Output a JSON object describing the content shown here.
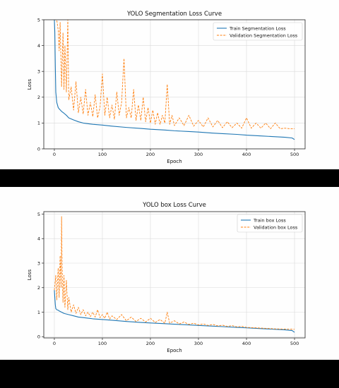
{
  "colors": {
    "train": "#1f77b4",
    "validation": "#ff7f0e",
    "grid": "#d9d9d9",
    "panel_bg": "#fefefe",
    "page_bg": "#000000"
  },
  "chart_data": [
    {
      "type": "line",
      "title": "YOLO Segmentation Loss Curve",
      "xlabel": "Epoch",
      "ylabel": "Loss",
      "xlim": [
        -22,
        522
      ],
      "ylim": [
        0,
        5
      ],
      "xticks": [
        "0",
        "100",
        "200",
        "300",
        "400",
        "500"
      ],
      "yticks": [
        "0",
        "1",
        "2",
        "3",
        "4",
        "5"
      ],
      "grid": true,
      "legend": "top-right",
      "series": [
        {
          "name": "Train Segmentation Loss",
          "style": "solid",
          "x": [
            0,
            1,
            2,
            3,
            5,
            8,
            10,
            15,
            20,
            25,
            30,
            40,
            50,
            60,
            80,
            100,
            120,
            150,
            180,
            200,
            230,
            250,
            280,
            300,
            330,
            350,
            380,
            400,
            430,
            450,
            480,
            495,
            500
          ],
          "y": [
            5,
            4.5,
            3.2,
            2.2,
            1.8,
            1.6,
            1.55,
            1.45,
            1.38,
            1.3,
            1.2,
            1.12,
            1.05,
            1.0,
            0.95,
            0.92,
            0.88,
            0.83,
            0.79,
            0.76,
            0.73,
            0.7,
            0.67,
            0.65,
            0.61,
            0.59,
            0.56,
            0.53,
            0.5,
            0.48,
            0.45,
            0.42,
            0.36
          ]
        },
        {
          "name": "Validation Segmentation Loss",
          "style": "dashed",
          "x": [
            0,
            5,
            8,
            10,
            12,
            15,
            18,
            20,
            22,
            25,
            28,
            30,
            35,
            40,
            45,
            50,
            55,
            60,
            65,
            70,
            75,
            80,
            85,
            90,
            95,
            100,
            105,
            110,
            115,
            120,
            125,
            130,
            135,
            140,
            145,
            150,
            155,
            160,
            165,
            170,
            175,
            180,
            185,
            190,
            195,
            200,
            205,
            210,
            215,
            220,
            225,
            230,
            235,
            240,
            245,
            250,
            260,
            270,
            280,
            290,
            300,
            310,
            320,
            330,
            340,
            350,
            360,
            370,
            380,
            390,
            400,
            410,
            420,
            430,
            440,
            450,
            460,
            470,
            480,
            490,
            500
          ],
          "y": [
            5,
            5,
            4.6,
            3.8,
            4.9,
            2.4,
            4.5,
            2.3,
            4.0,
            2.2,
            5.0,
            1.9,
            2.4,
            1.5,
            2.6,
            1.4,
            2.0,
            1.35,
            2.3,
            1.3,
            1.8,
            1.25,
            2.1,
            1.2,
            1.6,
            2.9,
            1.3,
            2.0,
            1.2,
            1.7,
            1.15,
            2.2,
            1.3,
            1.8,
            3.5,
            1.2,
            1.6,
            1.2,
            2.3,
            1.1,
            1.7,
            1.1,
            2.0,
            1.05,
            1.6,
            1.0,
            1.5,
            0.95,
            1.4,
            0.95,
            1.3,
            1.0,
            2.5,
            0.95,
            1.3,
            0.9,
            1.2,
            0.9,
            1.3,
            0.88,
            1.1,
            0.85,
            1.2,
            0.85,
            1.1,
            0.82,
            1.05,
            0.82,
            1.0,
            0.8,
            1.2,
            0.8,
            1.0,
            0.8,
            1.0,
            0.78,
            1.0,
            0.78,
            0.8,
            0.78,
            0.78
          ]
        }
      ]
    },
    {
      "type": "line",
      "title": "YOLO box Loss Curve",
      "xlabel": "Epoch",
      "ylabel": "Loss",
      "xlim": [
        -22,
        522
      ],
      "ylim": [
        -0.05,
        5.1
      ],
      "xticks": [
        "0",
        "100",
        "200",
        "300",
        "400",
        "500"
      ],
      "yticks": [
        "0",
        "1",
        "2",
        "3",
        "4",
        "5"
      ],
      "grid": true,
      "legend": "top-right",
      "series": [
        {
          "name": "Train box Loss",
          "style": "solid",
          "x": [
            0,
            1,
            2,
            3,
            5,
            8,
            10,
            15,
            20,
            30,
            40,
            50,
            60,
            80,
            100,
            120,
            150,
            180,
            200,
            230,
            250,
            280,
            300,
            330,
            350,
            380,
            400,
            430,
            450,
            480,
            495,
            500
          ],
          "y": [
            1.9,
            1.6,
            1.3,
            1.15,
            1.1,
            1.08,
            1.05,
            1.0,
            0.95,
            0.9,
            0.85,
            0.8,
            0.78,
            0.73,
            0.7,
            0.67,
            0.62,
            0.58,
            0.56,
            0.53,
            0.51,
            0.48,
            0.46,
            0.43,
            0.41,
            0.38,
            0.36,
            0.33,
            0.31,
            0.28,
            0.25,
            0.18
          ]
        },
        {
          "name": "Validation box Loss",
          "style": "dashed",
          "x": [
            0,
            3,
            5,
            8,
            10,
            12,
            14,
            15,
            16,
            18,
            20,
            22,
            25,
            28,
            30,
            35,
            40,
            45,
            50,
            55,
            60,
            65,
            70,
            75,
            80,
            85,
            90,
            95,
            100,
            105,
            110,
            115,
            120,
            130,
            140,
            150,
            160,
            170,
            180,
            190,
            200,
            210,
            220,
            230,
            235,
            240,
            250,
            260,
            270,
            280,
            290,
            300,
            310,
            320,
            330,
            340,
            350,
            360,
            370,
            380,
            390,
            400,
            420,
            440,
            460,
            480,
            500
          ],
          "y": [
            1.9,
            2.5,
            1.5,
            2.8,
            1.6,
            3.3,
            2.0,
            4.9,
            3.0,
            1.4,
            2.5,
            1.2,
            2.3,
            1.1,
            1.6,
            1.0,
            1.3,
            0.95,
            1.2,
            0.9,
            1.1,
            0.85,
            1.0,
            0.82,
            1.0,
            0.8,
            1.1,
            0.78,
            0.9,
            0.75,
            1.0,
            0.72,
            0.85,
            0.7,
            0.9,
            0.65,
            0.8,
            0.62,
            0.75,
            0.6,
            0.75,
            0.58,
            0.7,
            0.55,
            1.0,
            0.55,
            0.65,
            0.52,
            0.6,
            0.5,
            0.55,
            0.48,
            0.52,
            0.46,
            0.5,
            0.44,
            0.47,
            0.42,
            0.45,
            0.4,
            0.42,
            0.38,
            0.36,
            0.34,
            0.32,
            0.31,
            0.3
          ]
        }
      ]
    }
  ]
}
